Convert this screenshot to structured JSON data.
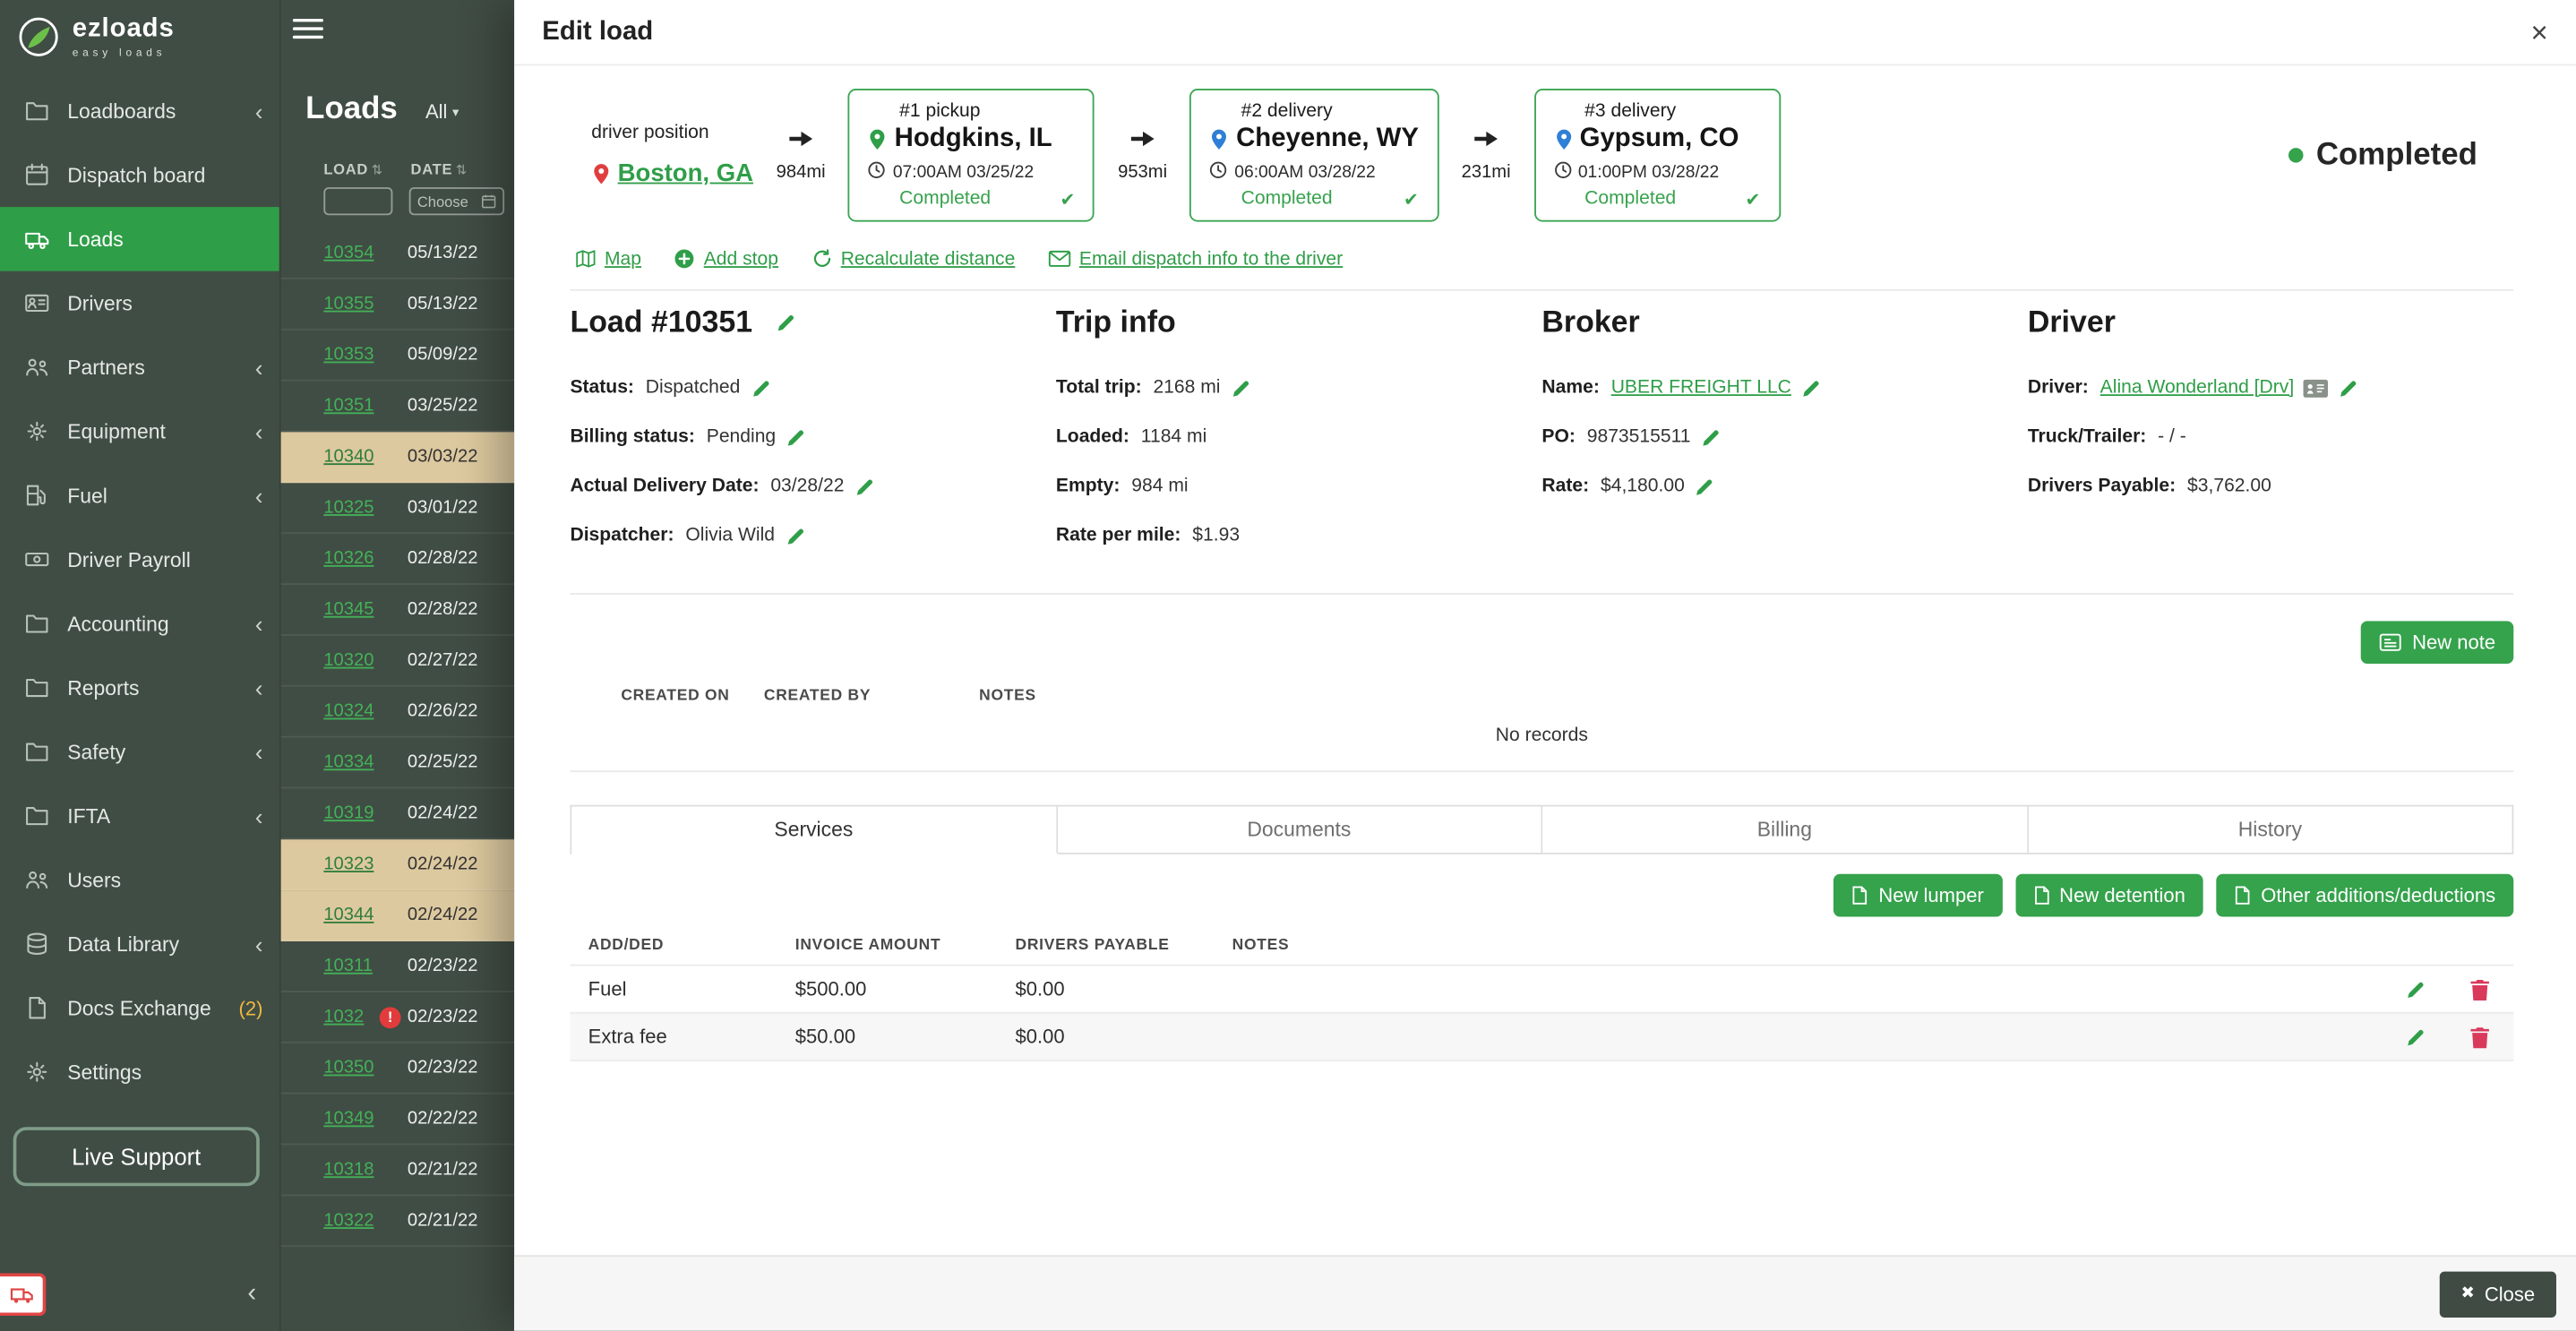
{
  "brand": {
    "name": "ezloads",
    "tagline": "easy loads"
  },
  "colors": {
    "accent_green": "#2f9e48",
    "button_green": "#35a24c",
    "sidebar_bg": "#404d44",
    "row_highlight_tan": "#ddc99f",
    "danger_red": "#d93a5c",
    "alert_red": "#e23b3b",
    "pin_blue": "#2f7fd6",
    "pin_red": "#e03e3e"
  },
  "sidebar": {
    "items": [
      {
        "label": "Loadboards",
        "icon": "folder",
        "chevron": true
      },
      {
        "label": "Dispatch board",
        "icon": "calendar",
        "chevron": false
      },
      {
        "label": "Loads",
        "icon": "truck",
        "chevron": false,
        "active": true
      },
      {
        "label": "Drivers",
        "icon": "idcard",
        "chevron": false
      },
      {
        "label": "Partners",
        "icon": "partners",
        "chevron": true
      },
      {
        "label": "Equipment",
        "icon": "equipment",
        "chevron": true
      },
      {
        "label": "Fuel",
        "icon": "fuel",
        "chevron": true
      },
      {
        "label": "Driver Payroll",
        "icon": "money",
        "chevron": false
      },
      {
        "label": "Accounting",
        "icon": "folder",
        "chevron": true
      },
      {
        "label": "Reports",
        "icon": "folder",
        "chevron": true
      },
      {
        "label": "Safety",
        "icon": "folder",
        "chevron": true
      },
      {
        "label": "IFTA",
        "icon": "folder",
        "chevron": true
      },
      {
        "label": "Users",
        "icon": "users",
        "chevron": false
      },
      {
        "label": "Data Library",
        "icon": "database",
        "chevron": true
      },
      {
        "label": "Docs Exchange",
        "icon": "doc",
        "chevron": false,
        "badge": "(2)"
      },
      {
        "label": "Settings",
        "icon": "gear",
        "chevron": false
      }
    ],
    "live_support_label": "Live Support"
  },
  "loads_panel": {
    "title": "Loads",
    "filter_all_label": "All",
    "columns": [
      "LOAD",
      "DATE"
    ],
    "date_filter_placeholder": "Choose",
    "rows": [
      {
        "load": "10354",
        "date": "05/13/22"
      },
      {
        "load": "10355",
        "date": "05/13/22"
      },
      {
        "load": "10353",
        "date": "05/09/22"
      },
      {
        "load": "10351",
        "date": "03/25/22"
      },
      {
        "load": "10340",
        "date": "03/03/22",
        "highlight": true
      },
      {
        "load": "10325",
        "date": "03/01/22"
      },
      {
        "load": "10326",
        "date": "02/28/22"
      },
      {
        "load": "10345",
        "date": "02/28/22"
      },
      {
        "load": "10320",
        "date": "02/27/22"
      },
      {
        "load": "10324",
        "date": "02/26/22"
      },
      {
        "load": "10334",
        "date": "02/25/22"
      },
      {
        "load": "10319",
        "date": "02/24/22"
      },
      {
        "load": "10323",
        "date": "02/24/22",
        "highlight": true
      },
      {
        "load": "10344",
        "date": "02/24/22",
        "highlight": true
      },
      {
        "load": "10311",
        "date": "02/23/22"
      },
      {
        "load": "1032",
        "date": "02/23/22",
        "alert": "!"
      },
      {
        "load": "10350",
        "date": "02/23/22"
      },
      {
        "load": "10349",
        "date": "02/22/22"
      },
      {
        "load": "10318",
        "date": "02/21/22"
      },
      {
        "load": "10322",
        "date": "02/21/22"
      }
    ]
  },
  "modal": {
    "title": "Edit load",
    "close_icon": "×",
    "route": {
      "driver_position_label": "driver position",
      "driver_position": "Boston, GA",
      "legs": [
        "984mi",
        "953mi",
        "231mi"
      ],
      "stops": [
        {
          "tag": "#1 pickup",
          "city": "Hodgkins, IL",
          "time": "07:00AM 03/25/22",
          "status": "Completed",
          "check": "✔",
          "pin": "green"
        },
        {
          "tag": "#2 delivery",
          "city": "Cheyenne, WY",
          "time": "06:00AM 03/28/22",
          "status": "Completed",
          "check": "✔",
          "pin": "blue"
        },
        {
          "tag": "#3 delivery",
          "city": "Gypsum, CO",
          "time": "01:00PM 03/28/22",
          "status": "Completed",
          "check": "✔",
          "pin": "blue"
        }
      ],
      "overall_status": "Completed"
    },
    "action_links": [
      "Map",
      "Add stop",
      "Recalculate distance",
      "Email dispatch info to the driver"
    ],
    "columns": [
      {
        "title": "Load #10351",
        "title_editable": true,
        "rows": [
          {
            "label": "Status:",
            "value": "Dispatched",
            "editable": true
          },
          {
            "label": "Billing status:",
            "value": "Pending",
            "editable": true
          },
          {
            "label": "Actual Delivery Date:",
            "value": "03/28/22",
            "editable": true
          },
          {
            "label": "Dispatcher:",
            "value": "Olivia Wild",
            "editable": true
          }
        ]
      },
      {
        "title": "Trip info",
        "rows": [
          {
            "label": "Total trip:",
            "value": "2168 mi",
            "editable": true
          },
          {
            "label": "Loaded:",
            "value": "1184 mi"
          },
          {
            "label": "Empty:",
            "value": "984 mi"
          },
          {
            "label": "Rate per mile:",
            "value": "$1.93"
          }
        ]
      },
      {
        "title": "Broker",
        "rows": [
          {
            "label": "Name:",
            "value": "UBER FREIGHT LLC",
            "link": true,
            "editable": true
          },
          {
            "label": "PO:",
            "value": "9873515511",
            "editable": true
          },
          {
            "label": "Rate:",
            "value": "$4,180.00",
            "editable": true
          }
        ]
      },
      {
        "title": "Driver",
        "rows": [
          {
            "label": "Driver:",
            "value": "Alina Wonderland [Drv]",
            "link": true,
            "badge": true,
            "editable": true
          },
          {
            "label": "Truck/Trailer:",
            "value": "- / -"
          },
          {
            "label": "Drivers Payable:",
            "value": "$3,762.00"
          }
        ]
      }
    ],
    "notes": {
      "new_note_label": "New note",
      "headers": [
        "CREATED ON",
        "CREATED BY",
        "NOTES"
      ],
      "empty_text": "No records"
    },
    "tabs": [
      "Services",
      "Documents",
      "Billing",
      "History"
    ],
    "active_tab": "Services",
    "services": {
      "buttons": [
        "New lumper",
        "New detention",
        "Other additions/deductions"
      ],
      "headers": [
        "ADD/DED",
        "INVOICE AMOUNT",
        "DRIVERS PAYABLE",
        "NOTES"
      ],
      "rows": [
        {
          "name": "Fuel",
          "invoice": "$500.00",
          "payable": "$0.00",
          "notes": ""
        },
        {
          "name": "Extra fee",
          "invoice": "$50.00",
          "payable": "$0.00",
          "notes": ""
        }
      ]
    },
    "footer_close_label": "Close"
  }
}
